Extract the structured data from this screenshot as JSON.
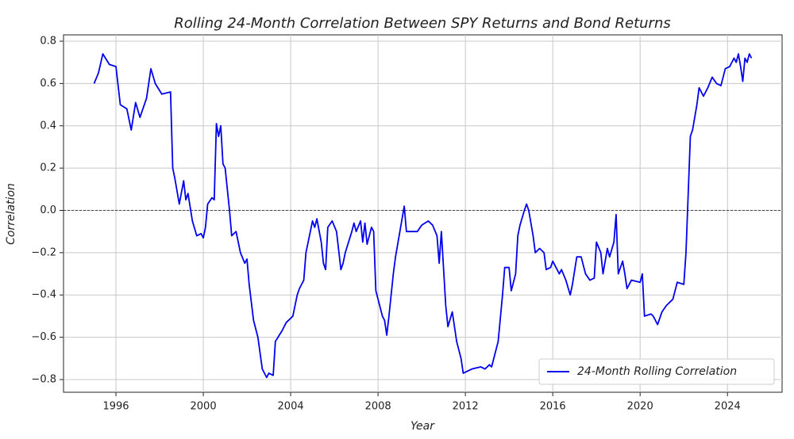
{
  "chart_data": {
    "type": "line",
    "title": "Rolling 24-Month Correlation Between SPY Returns and Bond Returns",
    "xlabel": "Year",
    "ylabel": "Correlation",
    "xlim": [
      1993.6,
      2026.5
    ],
    "ylim": [
      -0.86,
      0.83
    ],
    "xticks": [
      1996,
      2000,
      2004,
      2008,
      2012,
      2016,
      2020,
      2024
    ],
    "yticks": [
      {
        "value": -0.8,
        "label": "−0.8"
      },
      {
        "value": -0.6,
        "label": "−0.6"
      },
      {
        "value": -0.4,
        "label": "−0.4"
      },
      {
        "value": -0.2,
        "label": "−0.2"
      },
      {
        "value": 0,
        "label": "0.0"
      },
      0.2,
      0.4,
      0.6,
      0.8
    ],
    "grid": true,
    "hline": 0,
    "legend_loc": "lower right",
    "x": [
      1995.0,
      1995.2,
      1995.4,
      1995.7,
      1996.0,
      1996.2,
      1996.5,
      1996.7,
      1996.9,
      1997.1,
      1997.4,
      1997.6,
      1997.8,
      1998.1,
      1998.5,
      1998.6,
      1998.7,
      1998.9,
      1999.1,
      1999.2,
      1999.3,
      1999.5,
      1999.7,
      1999.9,
      2000.0,
      2000.1,
      2000.2,
      2000.4,
      2000.5,
      2000.6,
      2000.7,
      2000.8,
      2000.9,
      2001.0,
      2001.2,
      2001.3,
      2001.5,
      2001.6,
      2001.7,
      2001.9,
      2002.0,
      2002.1,
      2002.3,
      2002.5,
      2002.7,
      2002.9,
      2003.0,
      2003.2,
      2003.3,
      2003.6,
      2003.8,
      2004.1,
      2004.3,
      2004.4,
      2004.6,
      2004.7,
      2004.9,
      2005.0,
      2005.1,
      2005.2,
      2005.4,
      2005.5,
      2005.6,
      2005.7,
      2005.9,
      2006.1,
      2006.3,
      2006.4,
      2006.5,
      2006.8,
      2006.9,
      2007.0,
      2007.2,
      2007.3,
      2007.4,
      2007.5,
      2007.7,
      2007.8,
      2007.9,
      2008.0,
      2008.2,
      2008.3,
      2008.4,
      2008.5,
      2008.7,
      2008.8,
      2009.0,
      2009.2,
      2009.3,
      2009.8,
      2010.0,
      2010.3,
      2010.5,
      2010.7,
      2010.8,
      2010.9,
      2011.1,
      2011.2,
      2011.4,
      2011.6,
      2011.8,
      2011.9,
      2012.3,
      2012.7,
      2012.9,
      2013.1,
      2013.2,
      2013.5,
      2013.7,
      2013.8,
      2014.0,
      2014.1,
      2014.3,
      2014.4,
      2014.5,
      2014.7,
      2014.8,
      2014.9,
      2015.1,
      2015.2,
      2015.4,
      2015.6,
      2015.7,
      2015.9,
      2016.0,
      2016.3,
      2016.4,
      2016.6,
      2016.8,
      2016.9,
      2017.1,
      2017.3,
      2017.5,
      2017.7,
      2017.9,
      2018.0,
      2018.2,
      2018.3,
      2018.5,
      2018.6,
      2018.8,
      2018.9,
      2019.0,
      2019.2,
      2019.3,
      2019.4,
      2019.6,
      2020.0,
      2020.1,
      2020.2,
      2020.5,
      2020.6,
      2020.8,
      2021.0,
      2021.2,
      2021.5,
      2021.7,
      2022.0,
      2022.1,
      2022.3,
      2022.4,
      2022.6,
      2022.7,
      2022.9,
      2023.1,
      2023.3,
      2023.5,
      2023.7,
      2023.9,
      2024.1,
      2024.3,
      2024.4,
      2024.5,
      2024.6,
      2024.7,
      2024.8,
      2024.9,
      2025.0,
      2025.1
    ],
    "series": [
      {
        "name": "24-Month Rolling Correlation",
        "color": "#0000ee",
        "values": [
          0.6,
          0.65,
          0.74,
          0.69,
          0.68,
          0.5,
          0.48,
          0.38,
          0.51,
          0.44,
          0.53,
          0.67,
          0.6,
          0.55,
          0.56,
          0.2,
          0.15,
          0.03,
          0.14,
          0.05,
          0.08,
          -0.05,
          -0.12,
          -0.11,
          -0.13,
          -0.08,
          0.03,
          0.06,
          0.05,
          0.41,
          0.35,
          0.4,
          0.22,
          0.2,
          0.0,
          -0.12,
          -0.1,
          -0.15,
          -0.2,
          -0.25,
          -0.23,
          -0.35,
          -0.52,
          -0.6,
          -0.75,
          -0.79,
          -0.77,
          -0.78,
          -0.62,
          -0.57,
          -0.53,
          -0.5,
          -0.4,
          -0.37,
          -0.33,
          -0.2,
          -0.1,
          -0.05,
          -0.08,
          -0.04,
          -0.15,
          -0.25,
          -0.28,
          -0.08,
          -0.05,
          -0.1,
          -0.28,
          -0.25,
          -0.2,
          -0.1,
          -0.06,
          -0.1,
          -0.05,
          -0.15,
          -0.06,
          -0.16,
          -0.08,
          -0.1,
          -0.38,
          -0.42,
          -0.5,
          -0.52,
          -0.59,
          -0.5,
          -0.3,
          -0.22,
          -0.1,
          0.02,
          -0.1,
          -0.1,
          -0.07,
          -0.05,
          -0.07,
          -0.12,
          -0.25,
          -0.1,
          -0.45,
          -0.55,
          -0.48,
          -0.62,
          -0.7,
          -0.77,
          -0.75,
          -0.74,
          -0.75,
          -0.73,
          -0.74,
          -0.62,
          -0.4,
          -0.27,
          -0.27,
          -0.38,
          -0.3,
          -0.12,
          -0.07,
          0.0,
          0.03,
          0.0,
          -0.12,
          -0.2,
          -0.18,
          -0.2,
          -0.28,
          -0.27,
          -0.24,
          -0.3,
          -0.28,
          -0.33,
          -0.4,
          -0.35,
          -0.22,
          -0.22,
          -0.3,
          -0.33,
          -0.32,
          -0.15,
          -0.2,
          -0.3,
          -0.18,
          -0.22,
          -0.15,
          -0.02,
          -0.3,
          -0.24,
          -0.3,
          -0.37,
          -0.33,
          -0.34,
          -0.3,
          -0.5,
          -0.49,
          -0.5,
          -0.54,
          -0.48,
          -0.45,
          -0.42,
          -0.34,
          -0.35,
          -0.2,
          0.35,
          0.38,
          0.5,
          0.58,
          0.54,
          0.58,
          0.63,
          0.6,
          0.59,
          0.67,
          0.68,
          0.72,
          0.7,
          0.74,
          0.68,
          0.61,
          0.72,
          0.7,
          0.74,
          0.72
        ]
      }
    ]
  }
}
